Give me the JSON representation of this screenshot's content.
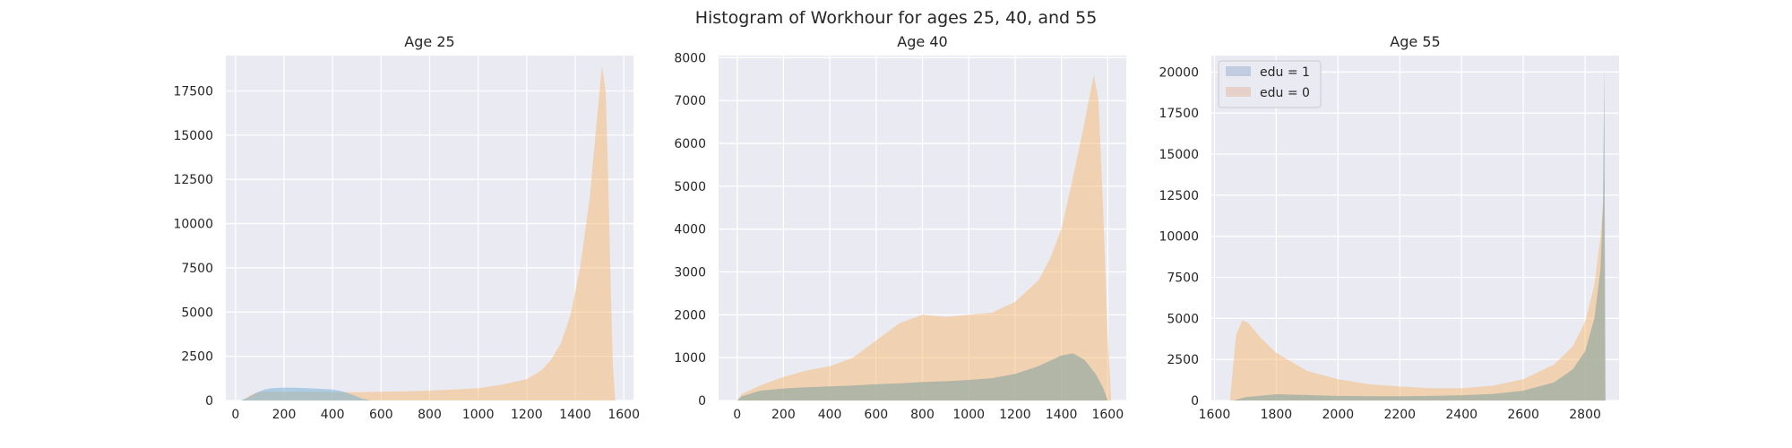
{
  "figure": {
    "suptitle": "Histogram of Workhour for ages 25, 40, and 55",
    "background": "#ffffff",
    "axes_bg": "#EAEAF2",
    "grid_color": "#ffffff"
  },
  "legend": {
    "location": "upper-left of third panel",
    "entries": [
      {
        "label": "edu = 1",
        "color": "#4C72B0"
      },
      {
        "label": "edu = 0",
        "color": "#DD8452"
      }
    ]
  },
  "chart_data": [
    {
      "type": "area",
      "title": "Age 25",
      "xlabel": "",
      "ylabel": "",
      "xlim": [
        -40,
        1640
      ],
      "ylim": [
        0,
        19500
      ],
      "xticks": [
        0,
        200,
        400,
        600,
        800,
        1000,
        1200,
        1400,
        1600
      ],
      "yticks": [
        0,
        2500,
        5000,
        7500,
        10000,
        12500,
        15000,
        17500
      ],
      "grid": true,
      "series": [
        {
          "name": "edu = 0",
          "color": "#F5B971",
          "opacity": 0.5,
          "points": [
            [
              30,
              0
            ],
            [
              60,
              300
            ],
            [
              100,
              500
            ],
            [
              200,
              500
            ],
            [
              300,
              500
            ],
            [
              400,
              480
            ],
            [
              500,
              470
            ],
            [
              600,
              500
            ],
            [
              700,
              520
            ],
            [
              800,
              560
            ],
            [
              900,
              620
            ],
            [
              1000,
              700
            ],
            [
              1100,
              900
            ],
            [
              1200,
              1200
            ],
            [
              1260,
              1700
            ],
            [
              1300,
              2300
            ],
            [
              1340,
              3200
            ],
            [
              1380,
              4800
            ],
            [
              1420,
              7500
            ],
            [
              1460,
              11500
            ],
            [
              1490,
              16000
            ],
            [
              1510,
              18900
            ],
            [
              1525,
              17500
            ],
            [
              1535,
              13000
            ],
            [
              1545,
              7000
            ],
            [
              1555,
              2000
            ],
            [
              1565,
              0
            ]
          ]
        },
        {
          "name": "edu = 1",
          "color": "#6BAED6",
          "opacity": 0.5,
          "points": [
            [
              20,
              0
            ],
            [
              50,
              150
            ],
            [
              80,
              400
            ],
            [
              120,
              620
            ],
            [
              150,
              700
            ],
            [
              200,
              730
            ],
            [
              250,
              720
            ],
            [
              300,
              700
            ],
            [
              350,
              660
            ],
            [
              400,
              620
            ],
            [
              440,
              520
            ],
            [
              480,
              330
            ],
            [
              520,
              120
            ],
            [
              560,
              0
            ]
          ]
        }
      ]
    },
    {
      "type": "area",
      "title": "Age 40",
      "xlabel": "",
      "ylabel": "",
      "xlim": [
        -80,
        1680
      ],
      "ylim": [
        0,
        8050
      ],
      "xticks": [
        0,
        200,
        400,
        600,
        800,
        1000,
        1200,
        1400,
        1600
      ],
      "yticks": [
        0,
        1000,
        2000,
        3000,
        4000,
        5000,
        6000,
        7000,
        8000
      ],
      "grid": true,
      "series": [
        {
          "name": "edu = 0",
          "color": "#F5B971",
          "opacity": 0.5,
          "points": [
            [
              0,
              0
            ],
            [
              20,
              150
            ],
            [
              100,
              350
            ],
            [
              200,
              550
            ],
            [
              300,
              700
            ],
            [
              400,
              800
            ],
            [
              500,
              1000
            ],
            [
              600,
              1400
            ],
            [
              700,
              1800
            ],
            [
              800,
              2000
            ],
            [
              900,
              1950
            ],
            [
              1000,
              2000
            ],
            [
              1100,
              2050
            ],
            [
              1200,
              2300
            ],
            [
              1300,
              2800
            ],
            [
              1350,
              3300
            ],
            [
              1400,
              4000
            ],
            [
              1450,
              5200
            ],
            [
              1500,
              6500
            ],
            [
              1540,
              7600
            ],
            [
              1560,
              7000
            ],
            [
              1580,
              4500
            ],
            [
              1600,
              1500
            ],
            [
              1615,
              0
            ]
          ]
        },
        {
          "name": "edu = 1",
          "color": "#8FA8A0",
          "opacity": 0.65,
          "points": [
            [
              0,
              0
            ],
            [
              20,
              100
            ],
            [
              100,
              230
            ],
            [
              200,
              280
            ],
            [
              300,
              310
            ],
            [
              400,
              330
            ],
            [
              500,
              350
            ],
            [
              600,
              380
            ],
            [
              700,
              400
            ],
            [
              800,
              430
            ],
            [
              900,
              450
            ],
            [
              1000,
              480
            ],
            [
              1100,
              520
            ],
            [
              1200,
              620
            ],
            [
              1300,
              800
            ],
            [
              1400,
              1050
            ],
            [
              1450,
              1100
            ],
            [
              1500,
              950
            ],
            [
              1550,
              600
            ],
            [
              1580,
              300
            ],
            [
              1600,
              0
            ]
          ]
        }
      ]
    },
    {
      "type": "area",
      "title": "Age 55",
      "xlabel": "",
      "ylabel": "",
      "xlim": [
        1590,
        2910
      ],
      "ylim": [
        0,
        21000
      ],
      "xticks": [
        1600,
        1800,
        2000,
        2200,
        2400,
        2600,
        2800
      ],
      "yticks": [
        0,
        2500,
        5000,
        7500,
        10000,
        12500,
        15000,
        17500,
        20000
      ],
      "grid": true,
      "series": [
        {
          "name": "edu = 0",
          "color": "#F5B971",
          "opacity": 0.5,
          "points": [
            [
              1650,
              0
            ],
            [
              1660,
              2000
            ],
            [
              1670,
              4000
            ],
            [
              1690,
              4900
            ],
            [
              1710,
              4700
            ],
            [
              1750,
              3800
            ],
            [
              1800,
              2900
            ],
            [
              1900,
              1800
            ],
            [
              2000,
              1300
            ],
            [
              2100,
              1000
            ],
            [
              2200,
              850
            ],
            [
              2300,
              750
            ],
            [
              2400,
              750
            ],
            [
              2500,
              900
            ],
            [
              2600,
              1300
            ],
            [
              2700,
              2200
            ],
            [
              2760,
              3300
            ],
            [
              2800,
              4800
            ],
            [
              2830,
              7000
            ],
            [
              2850,
              10000
            ],
            [
              2860,
              12500
            ],
            [
              2866,
              0
            ]
          ]
        },
        {
          "name": "edu = 1",
          "color": "#8FA8A0",
          "opacity": 0.65,
          "points": [
            [
              1660,
              0
            ],
            [
              1700,
              200
            ],
            [
              1800,
              380
            ],
            [
              1900,
              330
            ],
            [
              2000,
              280
            ],
            [
              2100,
              260
            ],
            [
              2200,
              260
            ],
            [
              2300,
              280
            ],
            [
              2400,
              320
            ],
            [
              2500,
              400
            ],
            [
              2600,
              600
            ],
            [
              2700,
              1100
            ],
            [
              2760,
              1900
            ],
            [
              2800,
              3000
            ],
            [
              2830,
              5000
            ],
            [
              2850,
              8000
            ],
            [
              2858,
              12000
            ],
            [
              2862,
              20300
            ],
            [
              2866,
              0
            ]
          ]
        }
      ]
    }
  ]
}
